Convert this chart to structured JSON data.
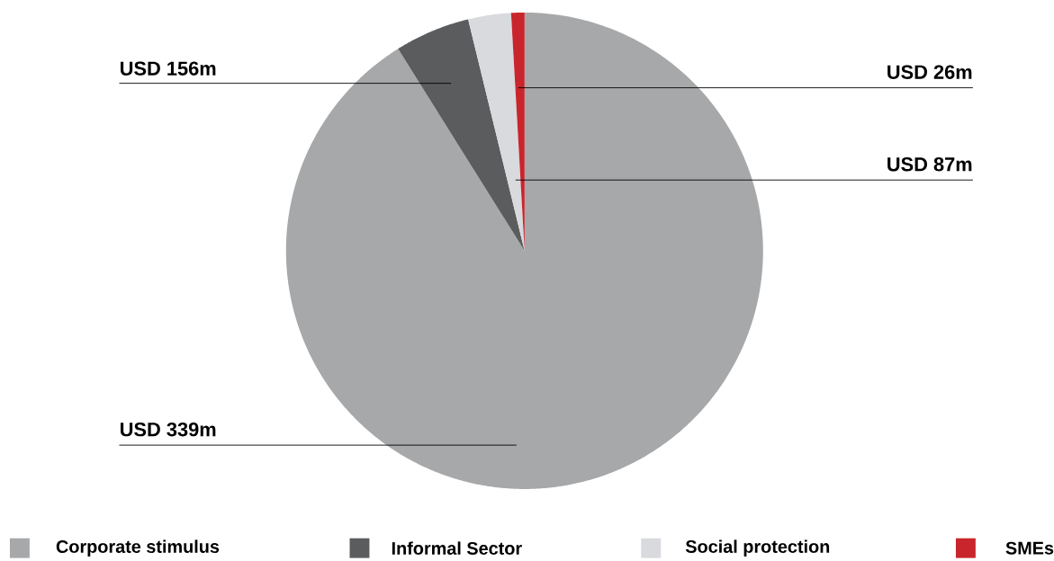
{
  "chart_data": {
    "type": "pie",
    "categories": [
      "Corporate stimulus",
      "Informal Sector",
      "Social protection",
      "SMEs"
    ],
    "values": [
      91.1,
      5.1,
      2.9,
      0.9
    ],
    "colors": [
      "#a7a8aa",
      "#5b5c5e",
      "#d9dadd",
      "#c9252c"
    ],
    "annotations": [
      "USD 156m",
      "USD 26m",
      "USD 87m",
      "USD 339m"
    ],
    "legend": "bottom"
  }
}
